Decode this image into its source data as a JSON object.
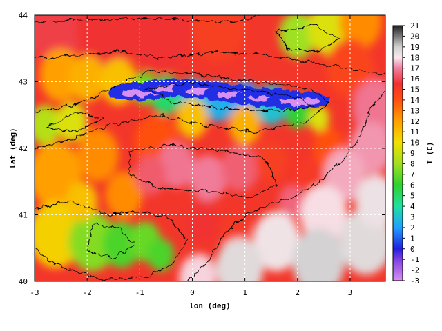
{
  "chart_data": {
    "type": "heatmap",
    "xlabel": "lon (deg)",
    "ylabel": "lat (deg)",
    "colorbar_label": "T (C)",
    "xlim": [
      -3,
      3.67
    ],
    "ylim": [
      40,
      44
    ],
    "x_ticks": [
      "-3",
      "-2",
      "-1",
      "0",
      "1",
      "2",
      "3"
    ],
    "y_ticks": [
      "40",
      "41",
      "42",
      "43",
      "44"
    ],
    "colorbar_range": [
      -3,
      21
    ],
    "colorbar_ticks": [
      "21",
      "20",
      "19",
      "18",
      "17",
      "16",
      "15",
      "14",
      "13",
      "12",
      "11",
      "10",
      "9",
      "8",
      "7",
      "6",
      "5",
      "4",
      "3",
      "2",
      "1",
      "0",
      "-1",
      "-2",
      "-3"
    ],
    "grid": true,
    "grid_style": "dashed white",
    "contours": "black isolines",
    "colormap": [
      {
        "t": -3,
        "color": "#d890f0"
      },
      {
        "t": -1,
        "color": "#8040e0"
      },
      {
        "t": 0,
        "color": "#2020e0"
      },
      {
        "t": 2,
        "color": "#20a0ff"
      },
      {
        "t": 4,
        "color": "#20e0a0"
      },
      {
        "t": 6,
        "color": "#30d030"
      },
      {
        "t": 8,
        "color": "#a0e020"
      },
      {
        "t": 10,
        "color": "#f0e000"
      },
      {
        "t": 12,
        "color": "#ffa000"
      },
      {
        "t": 14,
        "color": "#ff5010"
      },
      {
        "t": 15.5,
        "color": "#f03030"
      },
      {
        "t": 17,
        "color": "#f080a0"
      },
      {
        "t": 18,
        "color": "#f8e8ec"
      },
      {
        "t": 19,
        "color": "#d0d0d0"
      },
      {
        "t": 21,
        "color": "#202020"
      }
    ],
    "features": {
      "pyrenees_ridge": "cold band (~0 to -2 C) along lat 42.6-42.9, lon -1 to 2",
      "ebro_basin": "warm 16-17 C around lon -1..1.5, lat 41-42",
      "mediterranean_sea": "17-19 C, lower right",
      "iberian_system": "cooler 5-9 C, lon -2..-0.5, lat 40.3-41"
    }
  }
}
